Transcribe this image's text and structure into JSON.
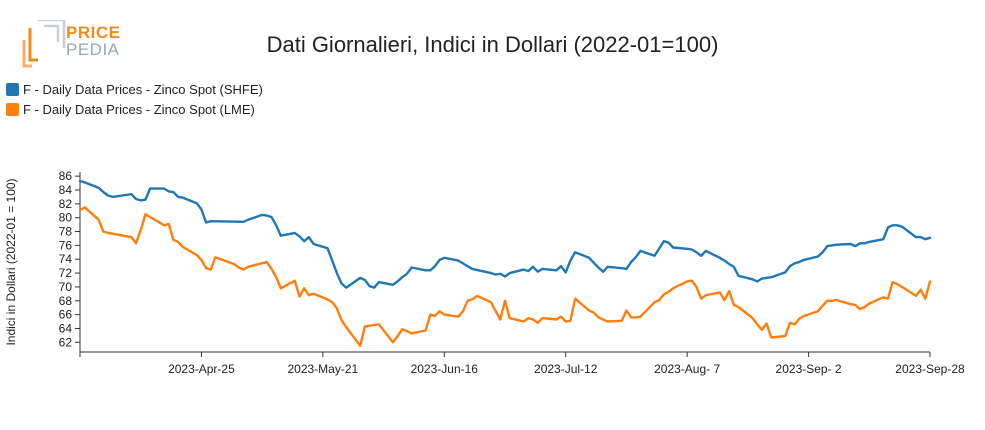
{
  "logo": {
    "line1": "PRICE",
    "line2": "PEDIA",
    "brand_orange": "#f28c1c",
    "brand_grey": "#9aa6b0"
  },
  "chart_data": {
    "type": "line",
    "title": "Dati Giornalieri, Indici in Dollari (2022-01=100)",
    "xlabel": "",
    "ylabel": "Indici in Dollari (2022-01 = 100)",
    "ylim": [
      60.6,
      86.6
    ],
    "yticks": [
      "86",
      "84",
      "82",
      "80",
      "78",
      "76",
      "74",
      "72",
      "70",
      "68",
      "66",
      "64",
      "62"
    ],
    "xrange": [
      "2023-Mar-30",
      "2023-Sep-28"
    ],
    "xticks": [
      "2023-Apr-25",
      "2023-May-21",
      "2023-Jun-16",
      "2023-Jul-12",
      "2023-Aug- 7",
      "2023-Sep- 2",
      "2023-Sep-28"
    ],
    "legend_position": "top-left",
    "grid": false,
    "series": [
      {
        "name": "F - Daily Data Prices - Zinco Spot (SHFE)",
        "color": "#1f77b4",
        "points": [
          [
            "2023-03-30",
            85.3
          ],
          [
            "2023-03-31",
            85.1
          ],
          [
            "2023-04-03",
            84.3
          ],
          [
            "2023-04-04",
            83.7
          ],
          [
            "2023-04-05",
            83.2
          ],
          [
            "2023-04-06",
            83.0
          ],
          [
            "2023-04-10",
            83.4
          ],
          [
            "2023-04-11",
            82.7
          ],
          [
            "2023-04-12",
            82.5
          ],
          [
            "2023-04-13",
            82.6
          ],
          [
            "2023-04-14",
            84.2
          ],
          [
            "2023-04-17",
            84.2
          ],
          [
            "2023-04-18",
            83.8
          ],
          [
            "2023-04-19",
            83.7
          ],
          [
            "2023-04-20",
            83.0
          ],
          [
            "2023-04-21",
            82.9
          ],
          [
            "2023-04-24",
            82.1
          ],
          [
            "2023-04-25",
            81.2
          ],
          [
            "2023-04-26",
            79.3
          ],
          [
            "2023-04-27",
            79.5
          ],
          [
            "2023-05-04",
            79.4
          ],
          [
            "2023-05-05",
            79.7
          ],
          [
            "2023-05-08",
            80.4
          ],
          [
            "2023-05-09",
            80.3
          ],
          [
            "2023-05-10",
            80.1
          ],
          [
            "2023-05-11",
            78.9
          ],
          [
            "2023-05-12",
            77.4
          ],
          [
            "2023-05-15",
            77.8
          ],
          [
            "2023-05-16",
            77.3
          ],
          [
            "2023-05-17",
            76.6
          ],
          [
            "2023-05-18",
            77.2
          ],
          [
            "2023-05-19",
            76.2
          ],
          [
            "2023-05-22",
            75.6
          ],
          [
            "2023-05-23",
            73.8
          ],
          [
            "2023-05-24",
            72.0
          ],
          [
            "2023-05-25",
            70.5
          ],
          [
            "2023-05-26",
            69.9
          ],
          [
            "2023-05-29",
            71.3
          ],
          [
            "2023-05-30",
            71.0
          ],
          [
            "2023-05-31",
            70.1
          ],
          [
            "2023-06-01",
            69.9
          ],
          [
            "2023-06-02",
            70.7
          ],
          [
            "2023-06-05",
            70.3
          ],
          [
            "2023-06-06",
            70.8
          ],
          [
            "2023-06-07",
            71.4
          ],
          [
            "2023-06-08",
            71.9
          ],
          [
            "2023-06-09",
            72.8
          ],
          [
            "2023-06-12",
            72.4
          ],
          [
            "2023-06-13",
            72.4
          ],
          [
            "2023-06-14",
            73.0
          ],
          [
            "2023-06-15",
            73.9
          ],
          [
            "2023-06-16",
            74.2
          ],
          [
            "2023-06-19",
            73.8
          ],
          [
            "2023-06-20",
            73.4
          ],
          [
            "2023-06-21",
            73.0
          ],
          [
            "2023-06-22",
            72.6
          ],
          [
            "2023-06-26",
            72.0
          ],
          [
            "2023-06-27",
            71.8
          ],
          [
            "2023-06-28",
            71.9
          ],
          [
            "2023-06-29",
            71.5
          ],
          [
            "2023-06-30",
            72.0
          ],
          [
            "2023-07-03",
            72.5
          ],
          [
            "2023-07-04",
            72.3
          ],
          [
            "2023-07-05",
            72.9
          ],
          [
            "2023-07-06",
            72.2
          ],
          [
            "2023-07-07",
            72.6
          ],
          [
            "2023-07-10",
            72.4
          ],
          [
            "2023-07-11",
            73.0
          ],
          [
            "2023-07-12",
            72.1
          ],
          [
            "2023-07-13",
            73.8
          ],
          [
            "2023-07-14",
            75.0
          ],
          [
            "2023-07-17",
            74.2
          ],
          [
            "2023-07-18",
            73.5
          ],
          [
            "2023-07-19",
            72.8
          ],
          [
            "2023-07-20",
            72.2
          ],
          [
            "2023-07-21",
            72.9
          ],
          [
            "2023-07-24",
            72.7
          ],
          [
            "2023-07-25",
            72.6
          ],
          [
            "2023-07-26",
            73.6
          ],
          [
            "2023-07-27",
            74.3
          ],
          [
            "2023-07-28",
            75.2
          ],
          [
            "2023-07-31",
            74.5
          ],
          [
            "2023-08-01",
            75.5
          ],
          [
            "2023-08-02",
            76.6
          ],
          [
            "2023-08-03",
            76.4
          ],
          [
            "2023-08-04",
            75.7
          ],
          [
            "2023-08-07",
            75.5
          ],
          [
            "2023-08-08",
            75.4
          ],
          [
            "2023-08-09",
            75.0
          ],
          [
            "2023-08-10",
            74.5
          ],
          [
            "2023-08-11",
            75.2
          ],
          [
            "2023-08-14",
            74.2
          ],
          [
            "2023-08-15",
            73.8
          ],
          [
            "2023-08-16",
            73.3
          ],
          [
            "2023-08-17",
            72.9
          ],
          [
            "2023-08-18",
            71.6
          ],
          [
            "2023-08-21",
            71.1
          ],
          [
            "2023-08-22",
            70.8
          ],
          [
            "2023-08-23",
            71.2
          ],
          [
            "2023-08-24",
            71.3
          ],
          [
            "2023-08-25",
            71.4
          ],
          [
            "2023-08-28",
            72.1
          ],
          [
            "2023-08-29",
            73.0
          ],
          [
            "2023-08-30",
            73.4
          ],
          [
            "2023-08-31",
            73.6
          ],
          [
            "2023-09-01",
            73.9
          ],
          [
            "2023-09-04",
            74.4
          ],
          [
            "2023-09-05",
            75.0
          ],
          [
            "2023-09-06",
            75.9
          ],
          [
            "2023-09-07",
            76.0
          ],
          [
            "2023-09-08",
            76.1
          ],
          [
            "2023-09-11",
            76.2
          ],
          [
            "2023-09-12",
            75.9
          ],
          [
            "2023-09-13",
            76.3
          ],
          [
            "2023-09-14",
            76.3
          ],
          [
            "2023-09-15",
            76.5
          ],
          [
            "2023-09-18",
            76.9
          ],
          [
            "2023-09-19",
            78.6
          ],
          [
            "2023-09-20",
            78.9
          ],
          [
            "2023-09-21",
            78.9
          ],
          [
            "2023-09-22",
            78.7
          ],
          [
            "2023-09-25",
            77.2
          ],
          [
            "2023-09-26",
            77.2
          ],
          [
            "2023-09-27",
            76.9
          ],
          [
            "2023-09-28",
            77.1
          ]
        ]
      },
      {
        "name": "F - Daily Data Prices - Zinco Spot (LME)",
        "color": "#ff7f0e",
        "points": [
          [
            "2023-03-30",
            81.1
          ],
          [
            "2023-03-31",
            81.5
          ],
          [
            "2023-04-03",
            79.7
          ],
          [
            "2023-04-04",
            78.0
          ],
          [
            "2023-04-05",
            77.8
          ],
          [
            "2023-04-10",
            77.2
          ],
          [
            "2023-04-11",
            76.3
          ],
          [
            "2023-04-12",
            78.2
          ],
          [
            "2023-04-13",
            80.5
          ],
          [
            "2023-04-14",
            80.1
          ],
          [
            "2023-04-17",
            78.9
          ],
          [
            "2023-04-18",
            79.1
          ],
          [
            "2023-04-19",
            76.8
          ],
          [
            "2023-04-20",
            76.5
          ],
          [
            "2023-04-21",
            75.8
          ],
          [
            "2023-04-24",
            74.6
          ],
          [
            "2023-04-25",
            73.9
          ],
          [
            "2023-04-26",
            72.7
          ],
          [
            "2023-04-27",
            72.5
          ],
          [
            "2023-04-28",
            74.3
          ],
          [
            "2023-05-02",
            73.3
          ],
          [
            "2023-05-03",
            72.8
          ],
          [
            "2023-05-04",
            72.5
          ],
          [
            "2023-05-05",
            72.9
          ],
          [
            "2023-05-09",
            73.6
          ],
          [
            "2023-05-10",
            72.6
          ],
          [
            "2023-05-11",
            71.4
          ],
          [
            "2023-05-12",
            69.8
          ],
          [
            "2023-05-15",
            70.9
          ],
          [
            "2023-05-16",
            68.6
          ],
          [
            "2023-05-17",
            69.8
          ],
          [
            "2023-05-18",
            68.8
          ],
          [
            "2023-05-19",
            69.0
          ],
          [
            "2023-05-22",
            68.2
          ],
          [
            "2023-05-23",
            67.8
          ],
          [
            "2023-05-24",
            66.9
          ],
          [
            "2023-05-25",
            65.2
          ],
          [
            "2023-05-26",
            64.2
          ],
          [
            "2023-05-29",
            61.5
          ],
          [
            "2023-05-30",
            64.3
          ],
          [
            "2023-06-01",
            64.5
          ],
          [
            "2023-06-02",
            64.6
          ],
          [
            "2023-06-05",
            62.0
          ],
          [
            "2023-06-06",
            62.9
          ],
          [
            "2023-06-07",
            63.9
          ],
          [
            "2023-06-08",
            63.6
          ],
          [
            "2023-06-09",
            63.3
          ],
          [
            "2023-06-12",
            63.7
          ],
          [
            "2023-06-13",
            66.0
          ],
          [
            "2023-06-14",
            65.8
          ],
          [
            "2023-06-15",
            66.5
          ],
          [
            "2023-06-16",
            66.0
          ],
          [
            "2023-06-19",
            65.7
          ],
          [
            "2023-06-20",
            66.5
          ],
          [
            "2023-06-21",
            68.0
          ],
          [
            "2023-06-22",
            68.2
          ],
          [
            "2023-06-23",
            68.7
          ],
          [
            "2023-06-26",
            67.8
          ],
          [
            "2023-06-27",
            66.5
          ],
          [
            "2023-06-28",
            65.3
          ],
          [
            "2023-06-29",
            68.0
          ],
          [
            "2023-06-30",
            65.5
          ],
          [
            "2023-07-03",
            65.0
          ],
          [
            "2023-07-04",
            65.5
          ],
          [
            "2023-07-05",
            65.3
          ],
          [
            "2023-07-06",
            64.8
          ],
          [
            "2023-07-07",
            65.5
          ],
          [
            "2023-07-10",
            65.3
          ],
          [
            "2023-07-11",
            65.7
          ],
          [
            "2023-07-12",
            65.0
          ],
          [
            "2023-07-13",
            65.1
          ],
          [
            "2023-07-14",
            68.3
          ],
          [
            "2023-07-17",
            66.6
          ],
          [
            "2023-07-18",
            66.3
          ],
          [
            "2023-07-19",
            65.6
          ],
          [
            "2023-07-20",
            65.3
          ],
          [
            "2023-07-21",
            65.0
          ],
          [
            "2023-07-24",
            65.1
          ],
          [
            "2023-07-25",
            66.6
          ],
          [
            "2023-07-26",
            65.6
          ],
          [
            "2023-07-27",
            65.6
          ],
          [
            "2023-07-28",
            65.7
          ],
          [
            "2023-07-31",
            67.8
          ],
          [
            "2023-08-01",
            68.1
          ],
          [
            "2023-08-02",
            68.9
          ],
          [
            "2023-08-03",
            69.3
          ],
          [
            "2023-08-04",
            69.8
          ],
          [
            "2023-08-07",
            70.8
          ],
          [
            "2023-08-08",
            70.9
          ],
          [
            "2023-08-09",
            70.0
          ],
          [
            "2023-08-10",
            68.3
          ],
          [
            "2023-08-11",
            68.8
          ],
          [
            "2023-08-14",
            69.2
          ],
          [
            "2023-08-15",
            68.1
          ],
          [
            "2023-08-16",
            69.4
          ],
          [
            "2023-08-17",
            67.4
          ],
          [
            "2023-08-18",
            67.1
          ],
          [
            "2023-08-21",
            65.5
          ],
          [
            "2023-08-22",
            64.6
          ],
          [
            "2023-08-23",
            63.8
          ],
          [
            "2023-08-24",
            64.7
          ],
          [
            "2023-08-25",
            62.7
          ],
          [
            "2023-08-28",
            62.9
          ],
          [
            "2023-08-29",
            64.8
          ],
          [
            "2023-08-30",
            64.6
          ],
          [
            "2023-08-31",
            65.4
          ],
          [
            "2023-09-01",
            65.8
          ],
          [
            "2023-09-04",
            66.5
          ],
          [
            "2023-09-05",
            67.3
          ],
          [
            "2023-09-06",
            68.0
          ],
          [
            "2023-09-07",
            68.0
          ],
          [
            "2023-09-08",
            68.1
          ],
          [
            "2023-09-11",
            67.5
          ],
          [
            "2023-09-12",
            67.4
          ],
          [
            "2023-09-13",
            66.8
          ],
          [
            "2023-09-14",
            67.1
          ],
          [
            "2023-09-15",
            67.6
          ],
          [
            "2023-09-18",
            68.5
          ],
          [
            "2023-09-19",
            68.3
          ],
          [
            "2023-09-20",
            70.7
          ],
          [
            "2023-09-21",
            70.4
          ],
          [
            "2023-09-22",
            70.0
          ],
          [
            "2023-09-25",
            68.7
          ],
          [
            "2023-09-26",
            69.6
          ],
          [
            "2023-09-27",
            68.3
          ],
          [
            "2023-09-28",
            70.8
          ]
        ]
      }
    ]
  }
}
